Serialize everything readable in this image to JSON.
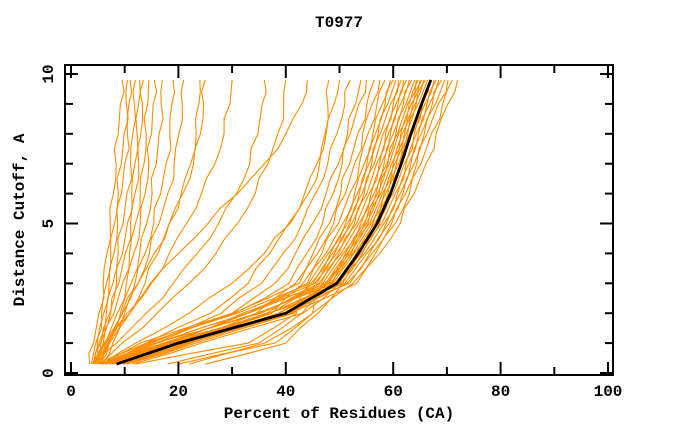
{
  "chart_data": {
    "type": "line",
    "title": "T0977",
    "xlabel": "Percent of Residues (CA)",
    "ylabel": "Distance Cutoff, A",
    "xlim": [
      0,
      100
    ],
    "ylim": [
      0,
      10
    ],
    "x_major_ticks": [
      0,
      20,
      40,
      60,
      80,
      100
    ],
    "x_minor_ticks": [
      10,
      30,
      50,
      70,
      90
    ],
    "y_major_ticks": [
      0,
      5,
      10
    ],
    "y_minor_ticks": [
      1,
      2,
      3,
      4,
      6,
      7,
      8,
      9
    ],
    "grid": false,
    "legend": "none",
    "background": "#FFFFFF",
    "axis_color": "#000000",
    "cutoff_levels": [
      0.3,
      1,
      2,
      3,
      4,
      5,
      6,
      7,
      8,
      9,
      9.8
    ],
    "models": {
      "name": "model-curves",
      "color": "#FF8C00",
      "curves": [
        [
          3.5,
          4.2,
          5.2,
          6.0,
          6.7,
          7.3,
          7.9,
          8.4,
          8.8,
          9.2,
          9.5
        ],
        [
          3.8,
          4.6,
          5.7,
          6.6,
          7.4,
          8.1,
          8.8,
          9.4,
          9.9,
          10.3,
          10.5
        ],
        [
          4.0,
          4.9,
          6.1,
          7.1,
          8.0,
          8.7,
          9.4,
          10.0,
          10.5,
          10.8,
          11.0
        ],
        [
          4.2,
          5.2,
          6.6,
          7.8,
          8.8,
          9.7,
          10.4,
          11.1,
          11.5,
          11.8,
          12.0
        ],
        [
          4.5,
          5.6,
          7.2,
          8.5,
          9.6,
          10.5,
          11.3,
          11.9,
          12.3,
          12.6,
          12.8
        ],
        [
          4.3,
          5.5,
          7.4,
          8.9,
          10.1,
          11.1,
          11.9,
          12.6,
          13.0,
          13.3,
          13.5
        ],
        [
          4.8,
          6.0,
          8.0,
          9.6,
          10.9,
          12.0,
          12.9,
          13.6,
          14.0,
          14.3,
          14.5
        ],
        [
          5.0,
          6.4,
          8.6,
          10.3,
          11.7,
          12.9,
          13.8,
          14.5,
          15.0,
          15.3,
          15.5
        ],
        [
          5.2,
          6.8,
          9.2,
          11.2,
          12.8,
          14.1,
          15.1,
          15.9,
          16.4,
          16.8,
          17.0
        ],
        [
          5.3,
          7.0,
          9.6,
          11.9,
          13.8,
          15.4,
          16.7,
          17.7,
          18.4,
          18.8,
          19.0
        ],
        [
          5.5,
          7.2,
          10.0,
          12.5,
          14.6,
          16.4,
          18.0,
          19.2,
          20.1,
          20.7,
          21.0
        ],
        [
          5.8,
          7.8,
          11.0,
          13.8,
          16.2,
          18.3,
          20.5,
          22.3,
          23.3,
          23.8,
          24.0
        ],
        [
          4.5,
          6.2,
          9.5,
          12.5,
          15.5,
          18.3,
          20.8,
          22.8,
          24.1,
          24.7,
          25.0
        ],
        [
          4.8,
          7.0,
          11.0,
          14.8,
          18.3,
          21.5,
          24.3,
          26.8,
          28.5,
          29.6,
          30.0
        ],
        [
          4.8,
          8.5,
          14.0,
          19.0,
          23.5,
          27.5,
          30.8,
          33.3,
          34.8,
          35.6,
          36.0
        ],
        [
          5.5,
          9.5,
          16.0,
          22.0,
          27.0,
          31.0,
          34.3,
          36.7,
          38.5,
          39.6,
          40.0
        ],
        [
          4.0,
          6.5,
          10.5,
          15.0,
          20.0,
          25.5,
          31.0,
          36.0,
          40.0,
          43.0,
          44.0
        ],
        [
          5.8,
          12.0,
          22.0,
          30.0,
          36.0,
          40.8,
          44.2,
          46.3,
          47.3,
          47.8,
          48.0
        ],
        [
          6.0,
          14.0,
          26.0,
          33.0,
          37.0,
          40.5,
          43.5,
          45.8,
          47.5,
          49.0,
          50.0
        ],
        [
          6.5,
          15.0,
          28.0,
          35.5,
          39.5,
          43.0,
          45.5,
          47.8,
          49.5,
          51.0,
          52.0
        ],
        [
          7.0,
          15.8,
          30.0,
          38.0,
          41.8,
          45.0,
          47.5,
          49.8,
          51.5,
          53.0,
          54.0
        ],
        [
          5.9,
          14.0,
          30.4,
          40.6,
          43.9,
          46.8,
          48.8,
          50.5,
          52.0,
          53.6,
          55.0
        ],
        [
          9.8,
          20.3,
          34.5,
          41.8,
          45.1,
          48.1,
          50.2,
          51.9,
          53.4,
          55.1,
          56.5
        ],
        [
          4.6,
          12.9,
          30.1,
          42.5,
          45.9,
          48.9,
          51.1,
          52.8,
          54.3,
          56.1,
          57.5
        ],
        [
          7.8,
          19.2,
          37.4,
          43.2,
          46.7,
          49.8,
          51.9,
          53.7,
          55.3,
          57.0,
          58.5
        ],
        [
          7.2,
          16.0,
          32.9,
          44.0,
          47.5,
          50.6,
          52.8,
          54.6,
          56.2,
          58.0,
          59.5
        ],
        [
          12.0,
          33.0,
          42.0,
          44.3,
          47.9,
          51.1,
          53.3,
          55.1,
          56.7,
          58.5,
          60.0
        ],
        [
          5.7,
          14.5,
          31.0,
          44.7,
          48.3,
          51.5,
          53.7,
          55.5,
          57.2,
          59.0,
          60.5
        ],
        [
          9.0,
          21.0,
          37.3,
          45.1,
          48.7,
          51.9,
          54.2,
          56.0,
          57.6,
          59.5,
          61.0
        ],
        [
          7.0,
          17.5,
          32.9,
          45.4,
          49.1,
          52.3,
          54.6,
          56.5,
          58.1,
          60.0,
          61.5
        ],
        [
          10.4,
          23.2,
          41.5,
          45.8,
          49.5,
          52.8,
          55.1,
          56.9,
          58.6,
          60.5,
          62.0
        ],
        [
          8.0,
          18.7,
          36.4,
          46.2,
          49.9,
          53.2,
          55.5,
          57.4,
          59.1,
          60.9,
          62.5
        ],
        [
          5.5,
          16.0,
          33.0,
          46.6,
          50.3,
          53.6,
          55.9,
          57.8,
          59.5,
          61.4,
          63.0
        ],
        [
          20.0,
          38.0,
          45.0,
          46.9,
          50.7,
          54.0,
          56.4,
          58.3,
          60.0,
          61.9,
          63.5
        ],
        [
          6.9,
          17.2,
          35.3,
          47.3,
          51.1,
          54.5,
          56.8,
          58.8,
          60.5,
          62.4,
          64.0
        ],
        [
          9.0,
          21.1,
          41.1,
          47.5,
          51.4,
          54.7,
          57.1,
          59.0,
          60.8,
          62.7,
          64.3
        ],
        [
          7.8,
          18.3,
          32.0,
          47.7,
          51.6,
          55.0,
          57.4,
          59.3,
          61.0,
          63.0,
          64.6
        ],
        [
          10.4,
          22.3,
          38.6,
          48.0,
          51.9,
          55.3,
          57.7,
          59.7,
          61.4,
          63.4,
          65.0
        ],
        [
          6.6,
          15.6,
          35.3,
          48.3,
          52.2,
          55.6,
          58.0,
          60.0,
          61.7,
          63.7,
          65.3
        ],
        [
          8.8,
          20.6,
          40.9,
          48.6,
          52.5,
          55.9,
          58.3,
          60.3,
          62.1,
          64.1,
          65.7
        ],
        [
          18.0,
          35.0,
          43.0,
          48.8,
          52.7,
          56.2,
          58.6,
          60.6,
          62.4,
          64.3,
          66.0
        ],
        [
          7.6,
          17.9,
          34.7,
          49.1,
          53.1,
          56.5,
          59.0,
          61.0,
          62.7,
          64.7,
          66.4
        ],
        [
          9.9,
          22.0,
          40.8,
          49.4,
          53.4,
          56.8,
          59.3,
          61.3,
          63.1,
          65.1,
          66.8
        ],
        [
          6.3,
          17.1,
          37.1,
          49.7,
          53.7,
          57.2,
          59.7,
          61.7,
          63.5,
          65.5,
          67.2
        ],
        [
          11.4,
          24.2,
          43.2,
          50.0,
          54.0,
          57.5,
          60.0,
          62.1,
          63.9,
          65.9,
          67.6
        ],
        [
          8.6,
          20.3,
          38.8,
          50.3,
          54.3,
          57.9,
          60.4,
          62.4,
          64.3,
          66.3,
          68.0
        ],
        [
          25.0,
          40.0,
          46.0,
          50.6,
          54.7,
          58.3,
          60.8,
          62.9,
          64.7,
          66.8,
          68.5
        ],
        [
          7.4,
          18.5,
          37.0,
          51.0,
          55.1,
          58.7,
          61.3,
          63.3,
          65.2,
          67.3,
          69.0
        ],
        [
          9.8,
          21.8,
          40.5,
          51.4,
          55.6,
          59.2,
          61.8,
          63.9,
          65.8,
          67.9,
          69.6
        ],
        [
          8.5,
          20.0,
          36.8,
          51.9,
          56.1,
          59.7,
          62.3,
          64.4,
          66.3,
          68.4,
          70.2
        ],
        [
          22.0,
          36.0,
          45.0,
          52.5,
          56.7,
          60.4,
          63.0,
          65.2,
          67.1,
          69.2,
          71.0
        ],
        [
          9.6,
          21.5,
          40.6,
          53.2,
          57.5,
          61.3,
          63.9,
          66.1,
          68.0,
          70.2,
          72.0
        ]
      ]
    },
    "consensus": {
      "name": "highlighted-model-curve",
      "color": "#000000",
      "curves": [
        [
          8.5,
          20.0,
          40.0,
          49.5,
          53.5,
          57.0,
          59.5,
          61.5,
          63.3,
          65.3,
          67.0
        ]
      ]
    }
  }
}
